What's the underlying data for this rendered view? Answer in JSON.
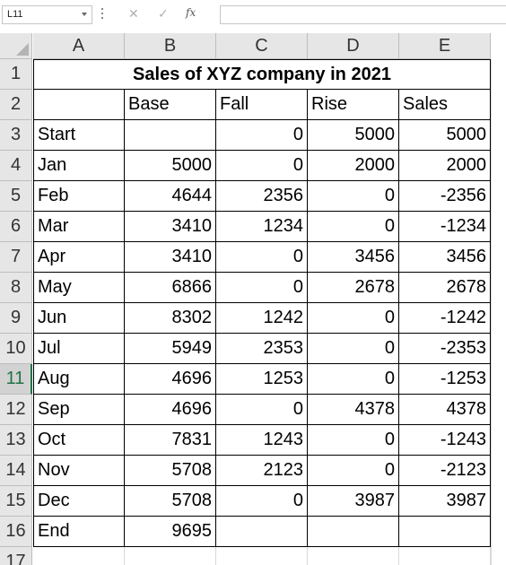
{
  "formula_bar": {
    "name_box": "L11",
    "cancel_icon": "✕",
    "enter_icon": "✓",
    "fx_label": "fx",
    "formula": ""
  },
  "columns": [
    "A",
    "B",
    "C",
    "D",
    "E"
  ],
  "rows": [
    "1",
    "2",
    "3",
    "4",
    "5",
    "6",
    "7",
    "8",
    "9",
    "10",
    "11",
    "12",
    "13",
    "14",
    "15",
    "16",
    "17"
  ],
  "selected_row": "11",
  "title": "Sales of XYZ company in 2021",
  "headers": [
    "",
    "Base",
    "Fall",
    "Rise",
    "Sales"
  ],
  "data": [
    [
      "Start",
      "",
      "0",
      "5000",
      "5000"
    ],
    [
      "Jan",
      "5000",
      "0",
      "2000",
      "2000"
    ],
    [
      "Feb",
      "4644",
      "2356",
      "0",
      "-2356"
    ],
    [
      "Mar",
      "3410",
      "1234",
      "0",
      "-1234"
    ],
    [
      "Apr",
      "3410",
      "0",
      "3456",
      "3456"
    ],
    [
      "May",
      "6866",
      "0",
      "2678",
      "2678"
    ],
    [
      "Jun",
      "8302",
      "1242",
      "0",
      "-1242"
    ],
    [
      "Jul",
      "5949",
      "2353",
      "0",
      "-2353"
    ],
    [
      "Aug",
      "4696",
      "1253",
      "0",
      "-1253"
    ],
    [
      "Sep",
      "4696",
      "0",
      "4378",
      "4378"
    ],
    [
      "Oct",
      "7831",
      "1243",
      "0",
      "-1243"
    ],
    [
      "Nov",
      "5708",
      "2123",
      "0",
      "-2123"
    ],
    [
      "Dec",
      "5708",
      "0",
      "3987",
      "3987"
    ],
    [
      "End",
      "9695",
      "",
      "",
      ""
    ]
  ]
}
